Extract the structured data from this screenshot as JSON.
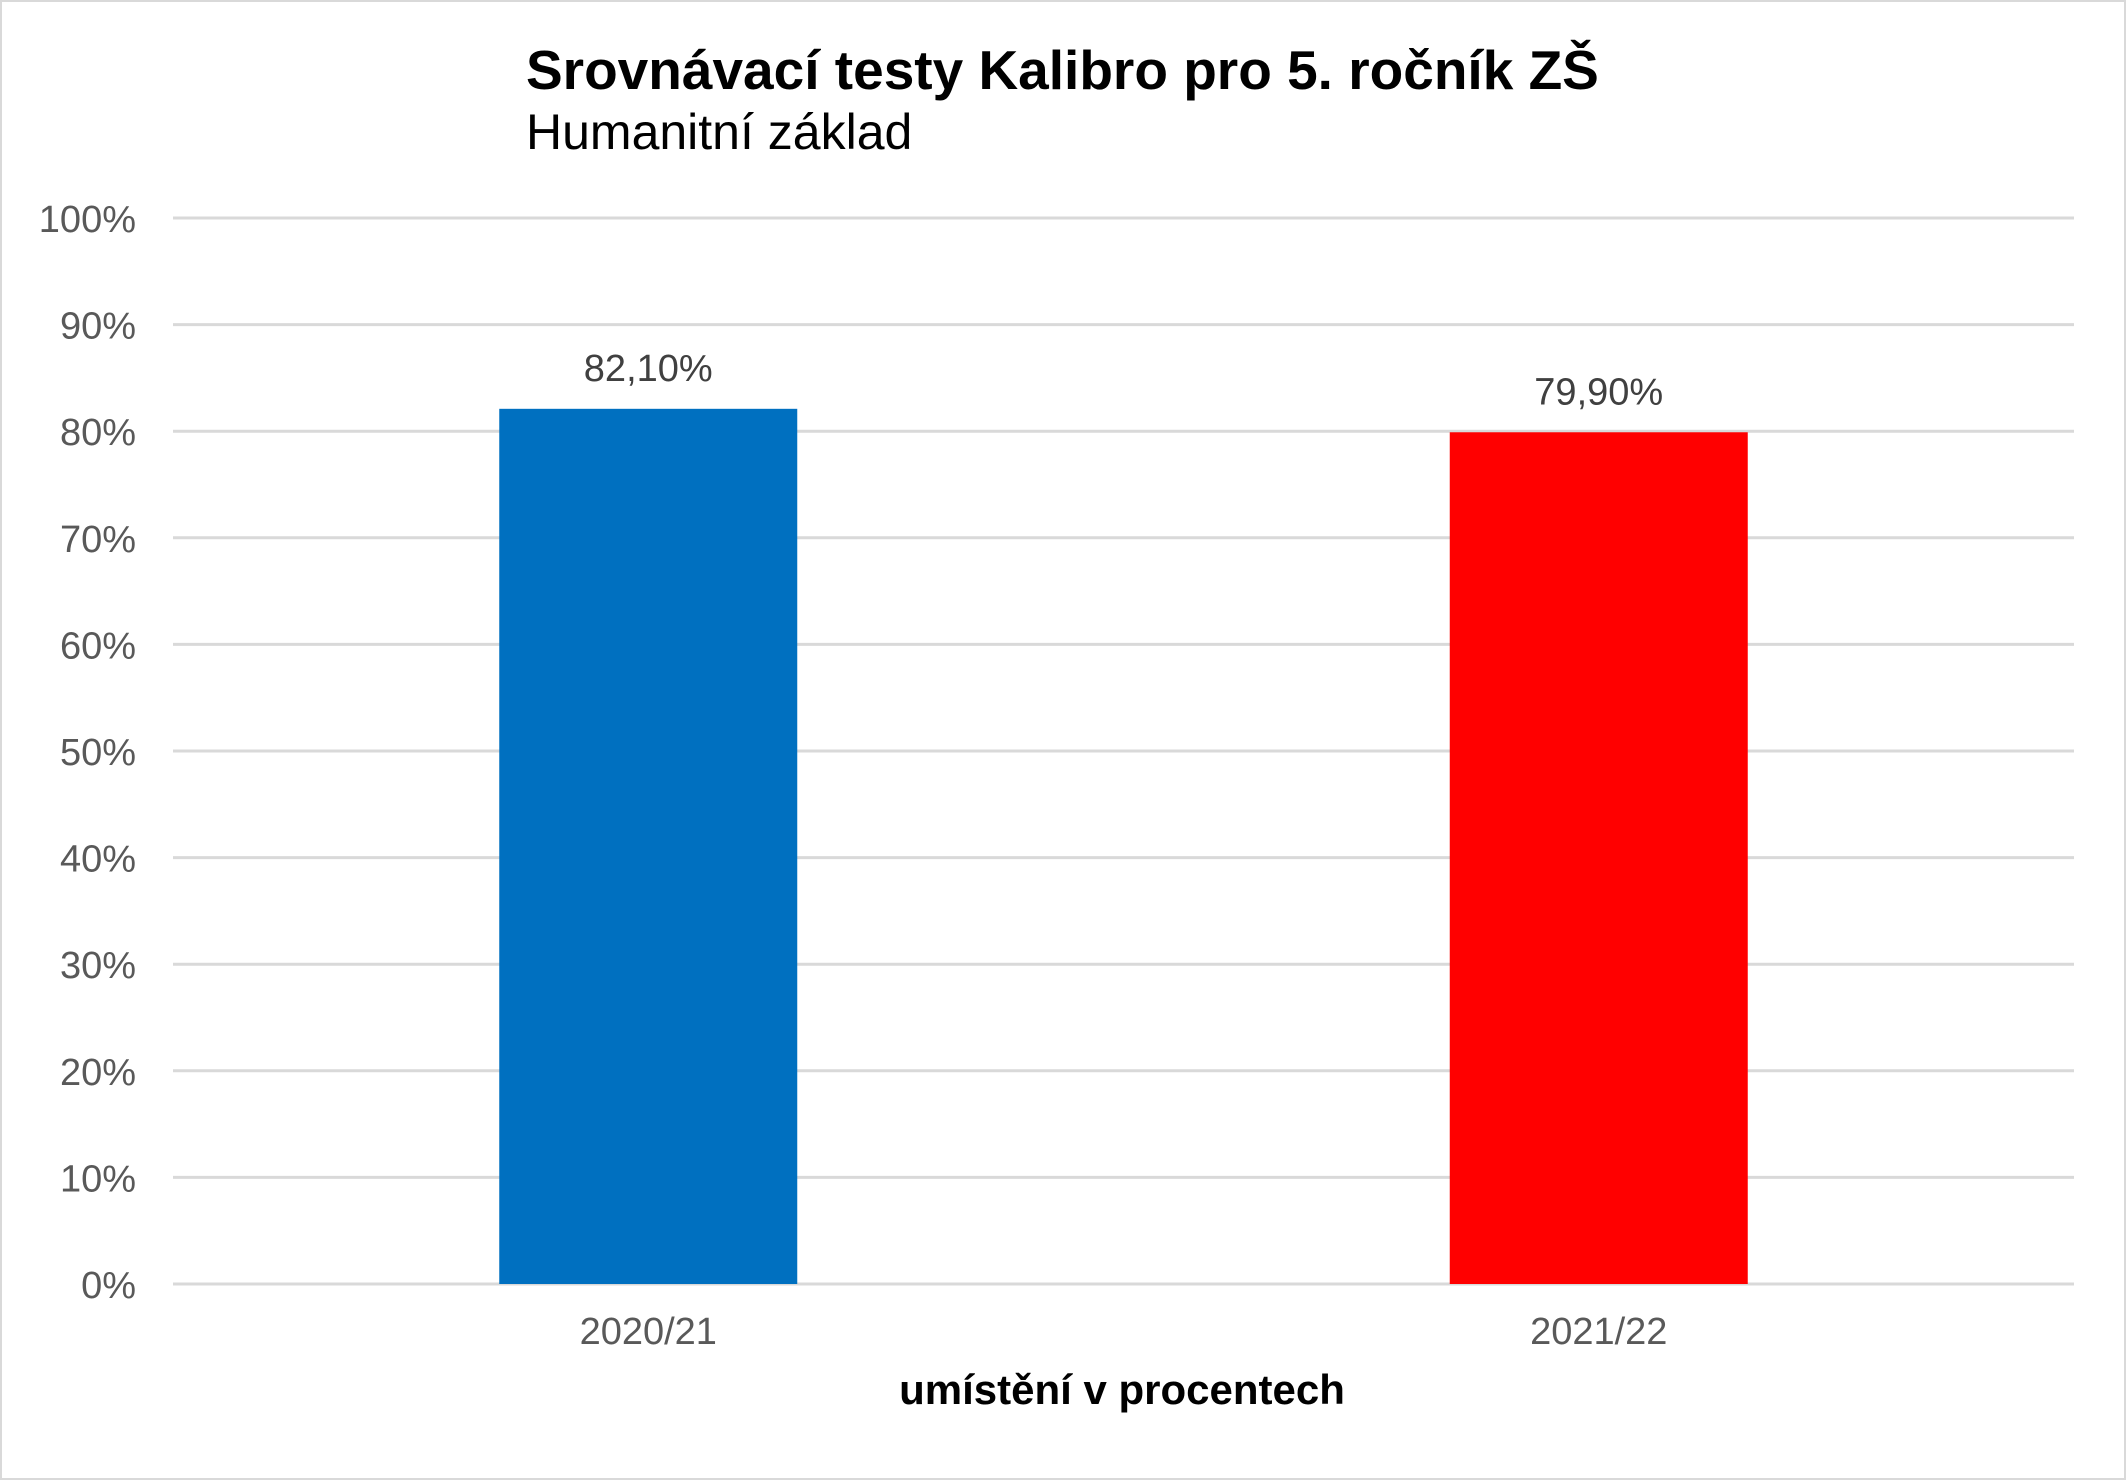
{
  "chart_data": {
    "type": "bar",
    "title": "Srovnávací testy Kalibro pro 5. ročník ZŠ",
    "subtitle": "Humanitní základ",
    "xlabel": "umístění v procentech",
    "ylabel": "",
    "categories": [
      "2020/21",
      "2021/22"
    ],
    "values": [
      82.1,
      79.9
    ],
    "data_labels": [
      "82,10%",
      "79,90%"
    ],
    "bar_colors": [
      "#0070c0",
      "#ff0000"
    ],
    "ylim": [
      0,
      100
    ],
    "y_ticks": [
      0,
      10,
      20,
      30,
      40,
      50,
      60,
      70,
      80,
      90,
      100
    ],
    "y_tick_labels": [
      "0%",
      "10%",
      "20%",
      "30%",
      "40%",
      "50%",
      "60%",
      "70%",
      "80%",
      "90%",
      "100%"
    ],
    "grid": true,
    "legend": "none"
  },
  "colors": {
    "gridline": "#d9d9d9",
    "tick_text": "#595959",
    "data_label_text": "#404040"
  }
}
